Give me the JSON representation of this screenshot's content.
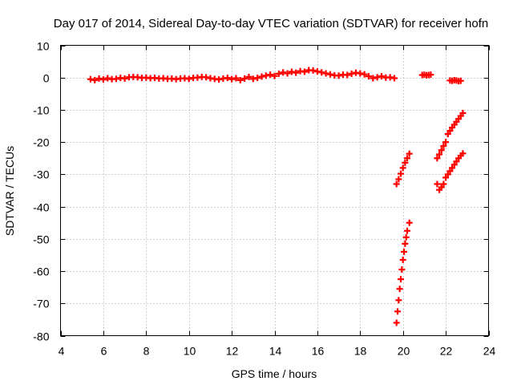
{
  "chart_data": {
    "type": "scatter",
    "title": "Day 017 of 2014, Sidereal Day-to-day VTEC variation (SDTVAR) for receiver hofn",
    "xlabel": "GPS time / hours",
    "ylabel": "SDTVAR / TECUs",
    "xlim": [
      4,
      24
    ],
    "ylim": [
      -80,
      10
    ],
    "xticks": [
      4,
      6,
      8,
      10,
      12,
      14,
      16,
      18,
      20,
      22,
      24
    ],
    "yticks": [
      10,
      0,
      -10,
      -20,
      -30,
      -40,
      -50,
      -60,
      -70,
      -80
    ],
    "grid": true,
    "marker": "plus",
    "color": "#ff0000",
    "series": [
      {
        "points": [
          [
            5.4,
            -0.5
          ],
          [
            5.6,
            -0.8
          ],
          [
            5.8,
            -0.3
          ],
          [
            6.0,
            -0.6
          ],
          [
            6.2,
            -0.2
          ],
          [
            6.4,
            -0.5
          ],
          [
            6.6,
            -0.4
          ],
          [
            6.8,
            -0.1
          ],
          [
            7.0,
            -0.3
          ],
          [
            7.2,
            0.1
          ],
          [
            7.4,
            0.2
          ],
          [
            7.6,
            0.1
          ],
          [
            7.8,
            -0.1
          ],
          [
            8.0,
            0.0
          ],
          [
            8.2,
            -0.2
          ],
          [
            8.4,
            -0.1
          ],
          [
            8.6,
            -0.3
          ],
          [
            8.8,
            -0.2
          ],
          [
            9.0,
            -0.4
          ],
          [
            9.2,
            -0.3
          ],
          [
            9.4,
            -0.5
          ],
          [
            9.6,
            -0.3
          ],
          [
            9.8,
            -0.2
          ],
          [
            10.0,
            -0.4
          ],
          [
            10.2,
            -0.1
          ],
          [
            10.4,
            0.0
          ],
          [
            10.6,
            0.2
          ],
          [
            10.8,
            0.1
          ],
          [
            11.0,
            -0.2
          ],
          [
            11.2,
            -0.4
          ],
          [
            11.4,
            -0.6
          ],
          [
            11.6,
            -0.3
          ],
          [
            11.8,
            -0.1
          ],
          [
            12.0,
            -0.5
          ],
          [
            12.2,
            -0.2
          ],
          [
            12.4,
            -0.8
          ],
          [
            12.6,
            -0.3
          ],
          [
            12.8,
            0.2
          ],
          [
            13.0,
            -0.4
          ],
          [
            13.2,
            -0.1
          ],
          [
            13.4,
            0.3
          ],
          [
            13.6,
            0.6
          ],
          [
            13.8,
            0.9
          ],
          [
            14.0,
            0.5
          ],
          [
            14.2,
            1.2
          ],
          [
            14.4,
            1.6
          ],
          [
            14.6,
            1.3
          ],
          [
            14.8,
            1.8
          ],
          [
            15.0,
            1.5
          ],
          [
            15.2,
            2.0
          ],
          [
            15.4,
            1.8
          ],
          [
            15.6,
            2.3
          ],
          [
            15.8,
            2.2
          ],
          [
            16.0,
            1.9
          ],
          [
            16.2,
            1.6
          ],
          [
            16.4,
            1.3
          ],
          [
            16.6,
            1.0
          ],
          [
            16.8,
            0.7
          ],
          [
            17.0,
            0.6
          ],
          [
            17.2,
            0.9
          ],
          [
            17.4,
            0.8
          ],
          [
            17.6,
            1.2
          ],
          [
            17.8,
            1.5
          ],
          [
            18.0,
            1.3
          ],
          [
            18.2,
            1.0
          ],
          [
            18.4,
            0.4
          ],
          [
            18.6,
            -0.2
          ],
          [
            18.8,
            0.1
          ],
          [
            19.0,
            0.4
          ],
          [
            19.2,
            0.0
          ],
          [
            19.4,
            0.1
          ],
          [
            19.6,
            -0.2
          ],
          [
            20.9,
            0.8
          ],
          [
            21.0,
            0.9
          ],
          [
            21.1,
            0.7
          ],
          [
            21.2,
            0.8
          ],
          [
            21.3,
            0.9
          ],
          [
            22.2,
            -0.9
          ],
          [
            22.3,
            -1.0
          ],
          [
            22.4,
            -0.8
          ],
          [
            22.5,
            -0.9
          ],
          [
            22.6,
            -1.1
          ],
          [
            22.7,
            -1.0
          ],
          [
            19.7,
            -33.0
          ],
          [
            19.8,
            -31.5
          ],
          [
            19.9,
            -29.8
          ],
          [
            20.0,
            -28.0
          ],
          [
            20.1,
            -26.4
          ],
          [
            20.2,
            -25.0
          ],
          [
            20.3,
            -23.6
          ],
          [
            19.7,
            -76.0
          ],
          [
            19.75,
            -72.5
          ],
          [
            19.8,
            -69.0
          ],
          [
            19.85,
            -65.5
          ],
          [
            19.9,
            -62.5
          ],
          [
            19.95,
            -59.5
          ],
          [
            20.0,
            -56.5
          ],
          [
            20.05,
            -54.0
          ],
          [
            20.1,
            -51.5
          ],
          [
            20.15,
            -49.5
          ],
          [
            20.2,
            -47.5
          ],
          [
            20.3,
            -45.0
          ],
          [
            21.6,
            -25.0
          ],
          [
            21.7,
            -23.8
          ],
          [
            21.8,
            -22.5
          ],
          [
            21.9,
            -21.2
          ],
          [
            22.0,
            -20.0
          ],
          [
            22.1,
            -17.5
          ],
          [
            22.2,
            -16.5
          ],
          [
            22.3,
            -15.5
          ],
          [
            22.4,
            -14.6
          ],
          [
            22.5,
            -13.7
          ],
          [
            22.6,
            -12.8
          ],
          [
            22.7,
            -11.9
          ],
          [
            22.8,
            -11.0
          ],
          [
            21.6,
            -33.0
          ],
          [
            21.7,
            -34.8
          ],
          [
            21.8,
            -34.0
          ],
          [
            21.9,
            -33.0
          ],
          [
            22.0,
            -31.0
          ],
          [
            22.1,
            -30.0
          ],
          [
            22.2,
            -29.0
          ],
          [
            22.3,
            -28.0
          ],
          [
            22.4,
            -27.0
          ],
          [
            22.5,
            -26.0
          ],
          [
            22.6,
            -25.0
          ],
          [
            22.7,
            -24.2
          ],
          [
            22.8,
            -23.5
          ]
        ]
      }
    ]
  }
}
